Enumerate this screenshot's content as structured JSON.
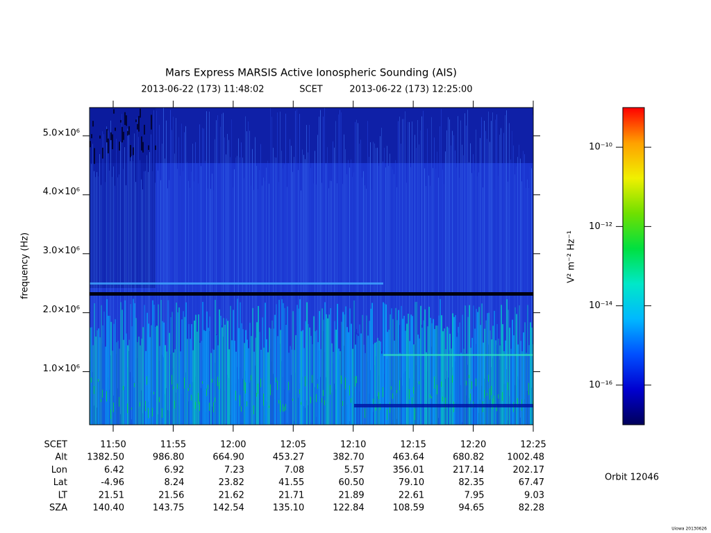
{
  "chart_data": {
    "type": "spectrogram",
    "title": "Mars Express MARSIS Active Ionospheric Sounding (AIS)",
    "subtitle_start": "2013-06-22 (173) 11:48:02",
    "subtitle_frame": "SCET",
    "subtitle_end": "2013-06-22 (173) 12:25:00",
    "y_label": "frequency (Hz)",
    "xlim": [
      "2013-06-22T11:48:02",
      "2013-06-22T12:25:00"
    ],
    "xticks": [
      {
        "value": "2013-06-22T11:50:00",
        "label": "11:50"
      },
      {
        "value": "2013-06-22T11:55:00",
        "label": "11:55"
      },
      {
        "value": "2013-06-22T12:00:00",
        "label": "12:00"
      },
      {
        "value": "2013-06-22T12:05:00",
        "label": "12:05"
      },
      {
        "value": "2013-06-22T12:10:00",
        "label": "12:10"
      },
      {
        "value": "2013-06-22T12:15:00",
        "label": "12:15"
      },
      {
        "value": "2013-06-22T12:20:00",
        "label": "12:20"
      },
      {
        "value": "2013-06-22T12:25:00",
        "label": "12:25"
      }
    ],
    "ylim": [
      100000,
      5480000
    ],
    "yticks": [
      {
        "value": 1000000,
        "label": "1.0×10⁶"
      },
      {
        "value": 2000000,
        "label": "2.0×10⁶"
      },
      {
        "value": 3000000,
        "label": "3.0×10⁶"
      },
      {
        "value": 4000000,
        "label": "4.0×10⁶"
      },
      {
        "value": 5000000,
        "label": "5.0×10⁶"
      }
    ],
    "colorbar": {
      "label": "V² m⁻² Hz⁻¹",
      "scale": "log",
      "zlim": [
        1e-17,
        1e-09
      ],
      "zticks": [
        {
          "value": 1e-16,
          "label": "10⁻¹⁶"
        },
        {
          "value": 1e-14,
          "label": "10⁻¹⁴"
        },
        {
          "value": 1e-12,
          "label": "10⁻¹²"
        },
        {
          "value": 1e-10,
          "label": "10⁻¹⁰"
        }
      ],
      "colors": [
        "#00005a",
        "#0000d0",
        "#0050ff",
        "#00b8ff",
        "#00e8c8",
        "#00e040",
        "#70e000",
        "#f0f000",
        "#ffa000",
        "#ff0000"
      ]
    },
    "ephemeris": {
      "time_label": "SCET",
      "rows": [
        {
          "label": "Alt",
          "values": [
            "1382.50",
            "986.80",
            "664.90",
            "453.27",
            "382.70",
            "463.64",
            "680.82",
            "1002.48"
          ]
        },
        {
          "label": "Lon",
          "values": [
            "6.42",
            "6.92",
            "7.23",
            "7.08",
            "5.57",
            "356.01",
            "217.14",
            "202.17"
          ]
        },
        {
          "label": "Lat",
          "values": [
            "-4.96",
            "8.24",
            "23.82",
            "41.55",
            "60.50",
            "79.10",
            "82.35",
            "67.47"
          ]
        },
        {
          "label": "LT",
          "values": [
            "21.51",
            "21.56",
            "21.62",
            "21.71",
            "21.89",
            "22.61",
            "7.95",
            "9.03"
          ]
        },
        {
          "label": "SZA",
          "values": [
            "140.40",
            "143.75",
            "142.54",
            "135.10",
            "122.84",
            "108.59",
            "94.65",
            "82.28"
          ]
        }
      ]
    },
    "orbit": "Orbit 12046"
  },
  "footer": "Uiowa 20130626"
}
